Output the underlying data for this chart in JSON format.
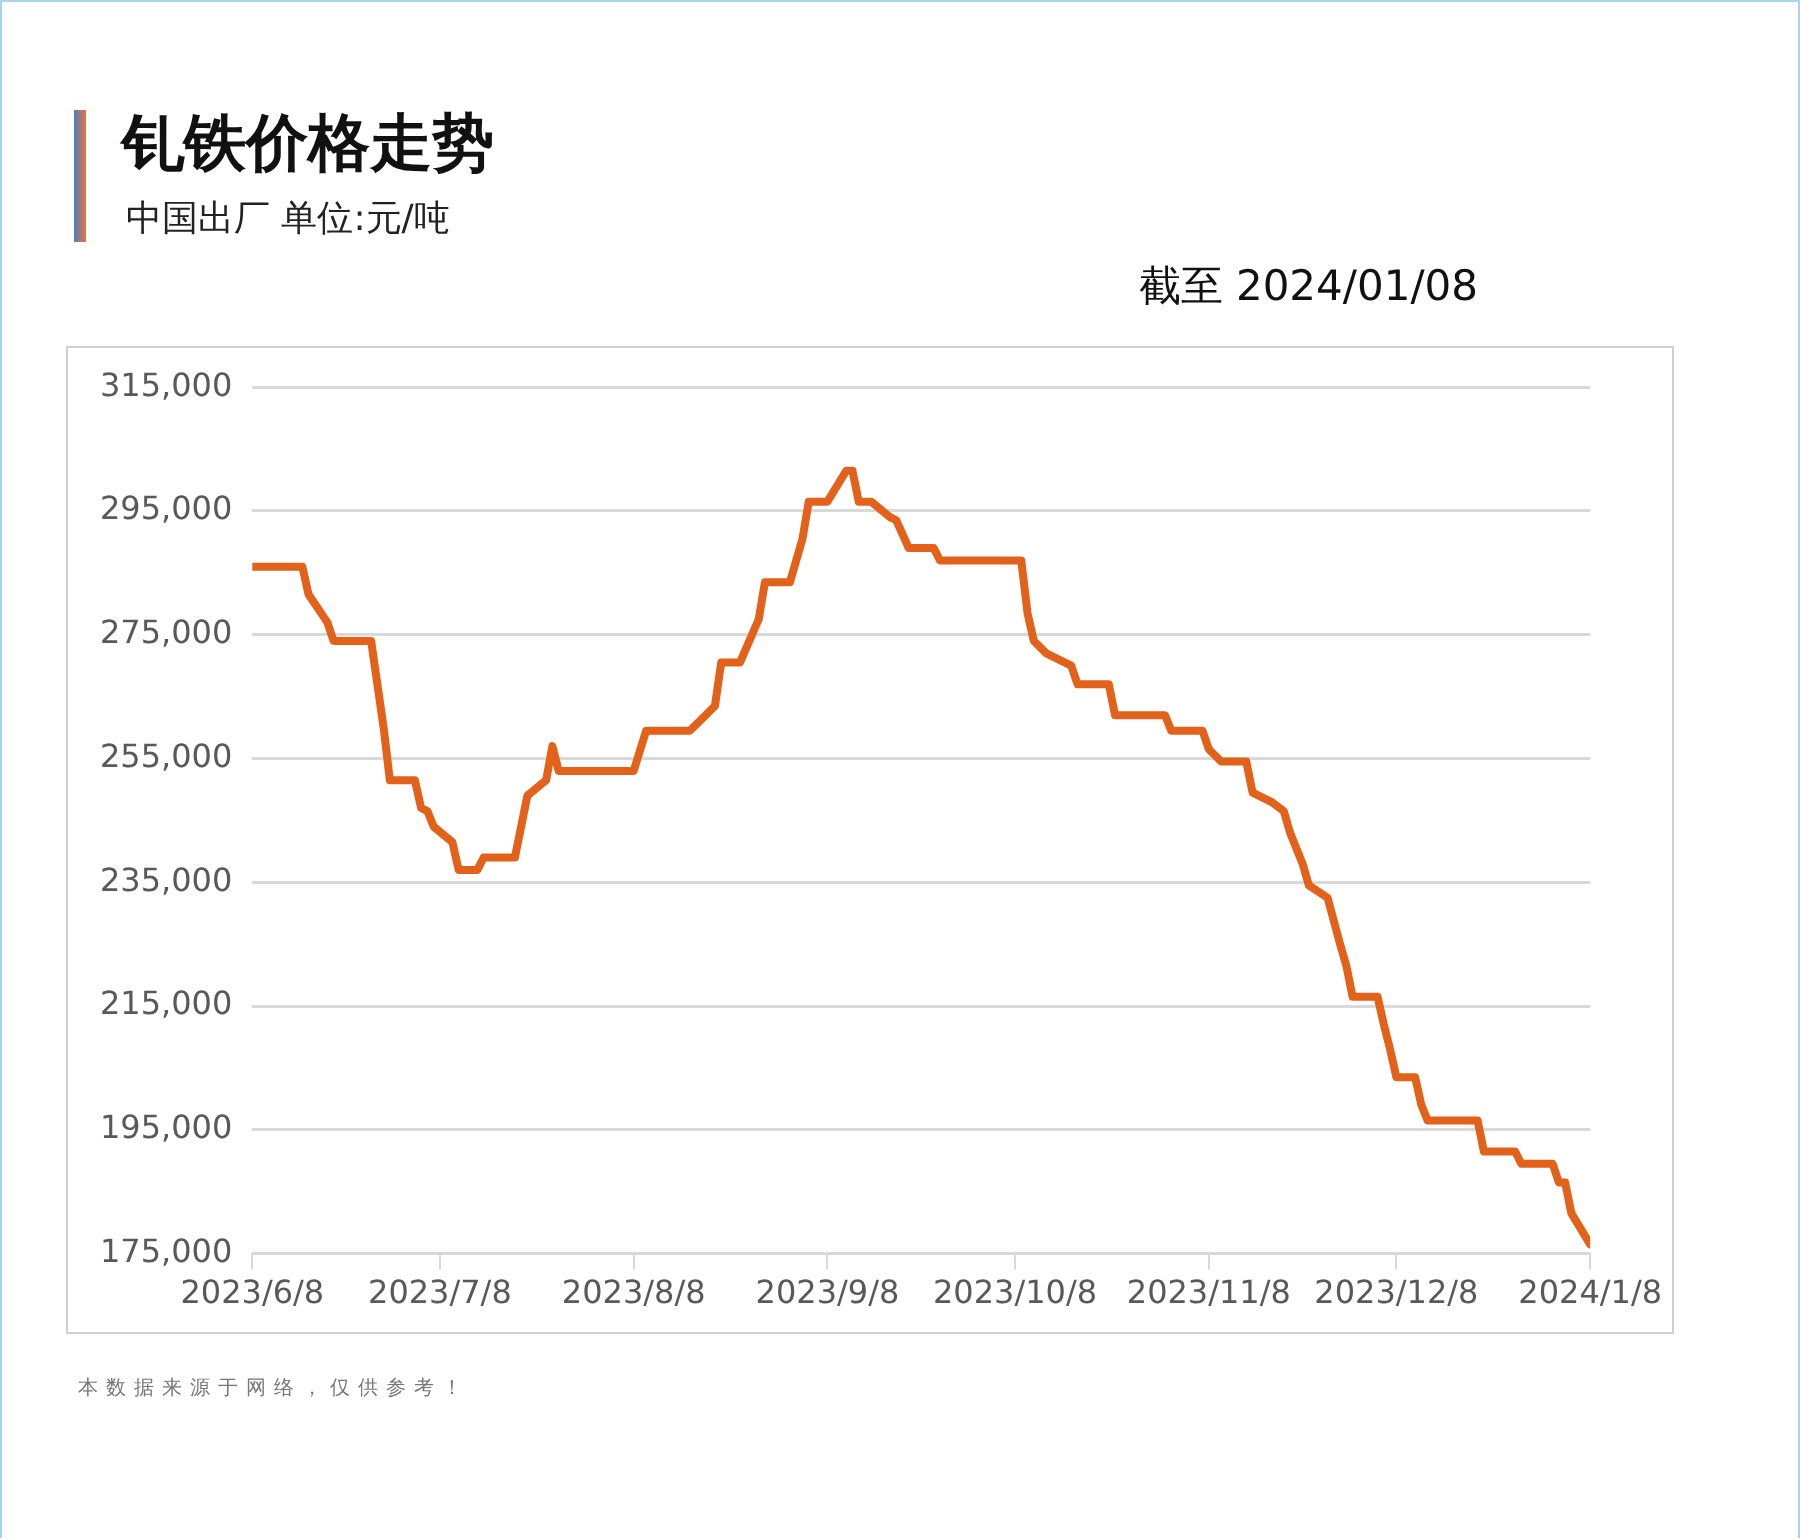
{
  "chart_data": {
    "type": "line",
    "title": "钆铁价格走势",
    "subtitle": "中国出厂  单位:元/吨",
    "annotations": [
      "截至 2024/01/08",
      "本数据来源于网络，仅供参考！"
    ],
    "x": [
      "2023-06-08",
      "2023-06-16",
      "2023-06-17",
      "2023-06-20",
      "2023-06-21",
      "2023-06-27",
      "2023-06-29",
      "2023-06-30",
      "2023-07-04",
      "2023-07-05",
      "2023-07-06",
      "2023-07-07",
      "2023-07-10",
      "2023-07-11",
      "2023-07-14",
      "2023-07-15",
      "2023-07-20",
      "2023-07-22",
      "2023-07-25",
      "2023-07-26",
      "2023-07-27",
      "2023-08-08",
      "2023-08-10",
      "2023-08-17",
      "2023-08-19",
      "2023-08-21",
      "2023-08-22",
      "2023-08-25",
      "2023-08-28",
      "2023-08-29",
      "2023-09-02",
      "2023-09-04",
      "2023-09-05",
      "2023-09-08",
      "2023-09-11",
      "2023-09-12",
      "2023-09-13",
      "2023-09-15",
      "2023-09-18",
      "2023-09-19",
      "2023-09-21",
      "2023-09-25",
      "2023-09-26",
      "2023-10-09",
      "2023-10-10",
      "2023-10-11",
      "2023-10-13",
      "2023-10-17",
      "2023-10-18",
      "2023-10-23",
      "2023-10-24",
      "2023-11-01",
      "2023-11-02",
      "2023-11-07",
      "2023-11-08",
      "2023-11-10",
      "2023-11-14",
      "2023-11-15",
      "2023-11-18",
      "2023-11-20",
      "2023-11-21",
      "2023-11-23",
      "2023-11-24",
      "2023-11-27",
      "2023-11-29",
      "2023-11-30",
      "2023-12-01",
      "2023-12-05",
      "2023-12-06",
      "2023-12-07",
      "2023-12-08",
      "2023-12-11",
      "2023-12-12",
      "2023-12-13",
      "2023-12-21",
      "2023-12-22",
      "2023-12-27",
      "2023-12-28",
      "2024-01-02",
      "2024-01-03",
      "2024-01-04",
      "2024-01-05",
      "2024-01-08"
    ],
    "series": [
      {
        "color": "#e2621b",
        "values": [
          286000,
          286000,
          281500,
          277000,
          274000,
          274000,
          260000,
          251500,
          251500,
          247000,
          246500,
          244000,
          241500,
          237000,
          237000,
          239000,
          239000,
          249000,
          251500,
          257000,
          253000,
          253000,
          259500,
          259500,
          261500,
          263500,
          270500,
          270500,
          277500,
          283500,
          283500,
          290500,
          296500,
          296500,
          301500,
          301500,
          296500,
          296500,
          294000,
          293500,
          289000,
          289000,
          287000,
          287000,
          278500,
          274000,
          272000,
          270000,
          267000,
          267000,
          262000,
          262000,
          259500,
          259500,
          256500,
          254500,
          254500,
          249500,
          248000,
          246500,
          243000,
          238000,
          234500,
          232500,
          225000,
          221500,
          216500,
          216500,
          212000,
          208000,
          203500,
          203500,
          199000,
          196500,
          196500,
          191500,
          191500,
          189500,
          189500,
          186500,
          186500,
          181500,
          176500
        ]
      }
    ],
    "xlim": [
      "2023-06-08",
      "2024-01-08"
    ],
    "xticks": [
      {
        "value": "2023-06-08",
        "label": "2023/6/8"
      },
      {
        "value": "2023-07-08",
        "label": "2023/7/8"
      },
      {
        "value": "2023-08-08",
        "label": "2023/8/8"
      },
      {
        "value": "2023-09-08",
        "label": "2023/9/8"
      },
      {
        "value": "2023-10-08",
        "label": "2023/10/8"
      },
      {
        "value": "2023-11-08",
        "label": "2023/11/8"
      },
      {
        "value": "2023-12-08",
        "label": "2023/12/8"
      },
      {
        "value": "2024-01-08",
        "label": "2024/1/8"
      }
    ],
    "ylim": [
      175000,
      315000
    ],
    "yticks": [
      {
        "value": 175000,
        "label": "175,000"
      },
      {
        "value": 195000,
        "label": "195,000"
      },
      {
        "value": 215000,
        "label": "215,000"
      },
      {
        "value": 235000,
        "label": "235,000"
      },
      {
        "value": 255000,
        "label": "255,000"
      },
      {
        "value": 275000,
        "label": "275,000"
      },
      {
        "value": 295000,
        "label": "295,000"
      },
      {
        "value": 315000,
        "label": "315,000"
      }
    ],
    "grid": "y",
    "legend": false,
    "marker": "none",
    "line_style": "solid"
  }
}
